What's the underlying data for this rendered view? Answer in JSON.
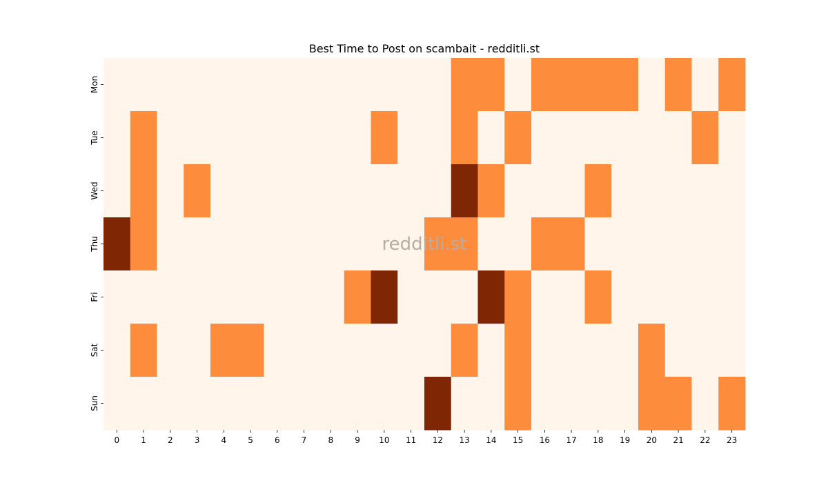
{
  "chart_data": {
    "type": "heatmap",
    "title": "Best Time to Post on scambait - redditli.st",
    "watermark": "redditli.st",
    "xlabel": "",
    "ylabel": "",
    "x_categories": [
      "0",
      "1",
      "2",
      "3",
      "4",
      "5",
      "6",
      "7",
      "8",
      "9",
      "10",
      "11",
      "12",
      "13",
      "14",
      "15",
      "16",
      "17",
      "18",
      "19",
      "20",
      "21",
      "22",
      "23"
    ],
    "y_categories": [
      "Mon",
      "Tue",
      "Wed",
      "Thu",
      "Fri",
      "Sat",
      "Sun"
    ],
    "values": [
      [
        0,
        0,
        0,
        0,
        0,
        0,
        0,
        0,
        0,
        0,
        0,
        0,
        0,
        1,
        1,
        0,
        1,
        1,
        1,
        1,
        0,
        1,
        0,
        1
      ],
      [
        0,
        1,
        0,
        0,
        0,
        0,
        0,
        0,
        0,
        0,
        1,
        0,
        0,
        1,
        0,
        1,
        0,
        0,
        0,
        0,
        0,
        0,
        1,
        0
      ],
      [
        0,
        1,
        0,
        1,
        0,
        0,
        0,
        0,
        0,
        0,
        0,
        0,
        0,
        2,
        1,
        0,
        0,
        0,
        1,
        0,
        0,
        0,
        0,
        0
      ],
      [
        2,
        1,
        0,
        0,
        0,
        0,
        0,
        0,
        0,
        0,
        0,
        0,
        1,
        1,
        0,
        0,
        1,
        1,
        0,
        0,
        0,
        0,
        0,
        0
      ],
      [
        0,
        0,
        0,
        0,
        0,
        0,
        0,
        0,
        0,
        1,
        2,
        0,
        0,
        0,
        2,
        1,
        0,
        0,
        1,
        0,
        0,
        0,
        0,
        0
      ],
      [
        0,
        1,
        0,
        0,
        1,
        1,
        0,
        0,
        0,
        0,
        0,
        0,
        0,
        1,
        0,
        1,
        0,
        0,
        0,
        0,
        1,
        0,
        0,
        0
      ],
      [
        0,
        0,
        0,
        0,
        0,
        0,
        0,
        0,
        0,
        0,
        0,
        0,
        2,
        0,
        0,
        1,
        0,
        0,
        0,
        0,
        1,
        1,
        0,
        1
      ]
    ],
    "colorscale": [
      "#fff5eb",
      "#fd8d3c",
      "#7f2704"
    ],
    "colorbar": false
  }
}
